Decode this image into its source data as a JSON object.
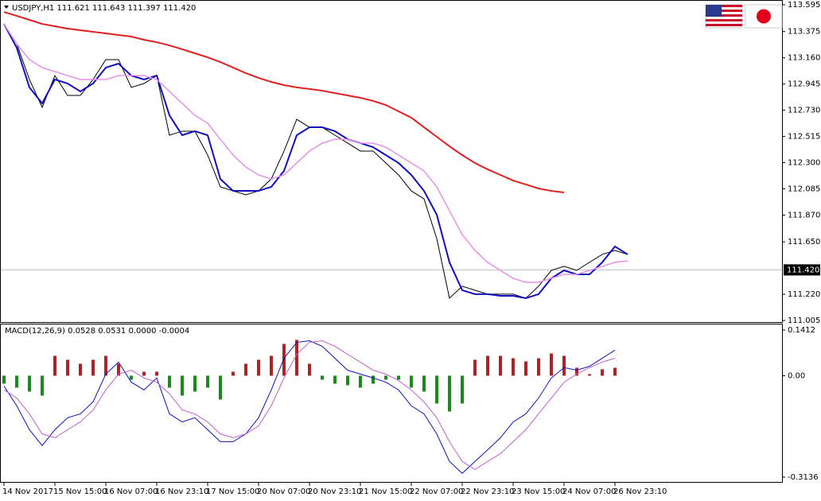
{
  "chart_data": [
    {
      "type": "line",
      "title": "USDJPY,H1  111.621 111.643 111.397 111.420",
      "last_price": {
        "value": 111.42,
        "label": "111.420"
      },
      "ylim": [
        111.005,
        113.595
      ],
      "yticks": [
        113.595,
        113.375,
        {
          "value": 113.16,
          "label": "113.160"
        },
        112.945,
        {
          "value": 112.73,
          "label": "112.730"
        },
        112.515,
        {
          "value": 112.3,
          "label": "112.300"
        },
        112.085,
        {
          "value": 111.87,
          "label": "111.870"
        },
        {
          "value": 111.65,
          "label": "111.650"
        },
        {
          "value": 111.22,
          "label": "111.220"
        },
        111.005
      ],
      "series": [
        {
          "color": "#000000",
          "width": 1,
          "values": [
            113.438,
            113.275,
            112.982,
            112.753,
            113.014,
            112.851,
            112.851,
            112.982,
            113.145,
            113.145,
            112.917,
            112.949,
            113.014,
            112.525,
            112.558,
            112.558,
            112.362,
            112.101,
            112.068,
            112.036,
            112.068,
            112.166,
            112.395,
            112.656,
            112.59,
            112.59,
            112.525,
            112.46,
            112.395,
            112.395,
            112.297,
            112.199,
            112.068,
            112.003,
            111.677,
            111.188,
            111.286,
            111.253,
            111.221,
            111.221,
            111.221,
            111.188,
            111.286,
            111.416,
            111.449,
            111.416,
            111.482,
            111.547,
            111.58,
            111.547
          ]
        },
        {
          "color": "#1010c0",
          "width": 2,
          "values": [
            113.438,
            113.243,
            112.917,
            112.786,
            112.982,
            112.949,
            112.884,
            112.949,
            113.08,
            113.112,
            113.014,
            112.982,
            113.014,
            112.688,
            112.525,
            112.558,
            112.525,
            112.166,
            112.068,
            112.068,
            112.068,
            112.101,
            112.232,
            112.525,
            112.59,
            112.59,
            112.558,
            112.492,
            112.46,
            112.427,
            112.362,
            112.297,
            112.199,
            112.068,
            111.873,
            111.482,
            111.253,
            111.221,
            111.221,
            111.207,
            111.207,
            111.188,
            111.221,
            111.351,
            111.416,
            111.383,
            111.383,
            111.482,
            111.612,
            111.547
          ]
        },
        {
          "color": "#e890e8",
          "width": 1.5,
          "values": [
            113.438,
            113.275,
            113.145,
            113.08,
            113.047,
            113.014,
            112.982,
            112.982,
            112.982,
            113.014,
            113.014,
            113.014,
            112.982,
            112.884,
            112.786,
            112.688,
            112.623,
            112.492,
            112.362,
            112.264,
            112.199,
            112.166,
            112.199,
            112.297,
            112.395,
            112.46,
            112.492,
            112.492,
            112.46,
            112.46,
            112.427,
            112.362,
            112.297,
            112.232,
            112.101,
            111.905,
            111.71,
            111.58,
            111.482,
            111.416,
            111.351,
            111.318,
            111.318,
            111.351,
            111.383,
            111.383,
            111.416,
            111.449,
            111.482,
            111.494
          ]
        },
        {
          "color": "#e02020",
          "width": 2,
          "values": [
            113.536,
            113.504,
            113.471,
            113.438,
            113.419,
            113.399,
            113.386,
            113.373,
            113.36,
            113.347,
            113.334,
            113.308,
            113.288,
            113.262,
            113.23,
            113.197,
            113.164,
            113.125,
            113.08,
            113.034,
            112.995,
            112.962,
            112.936,
            112.917,
            112.904,
            112.89,
            112.871,
            112.851,
            112.832,
            112.806,
            112.773,
            112.721,
            112.669,
            112.59,
            112.512,
            112.434,
            112.362,
            112.297,
            112.245,
            112.199,
            112.153,
            112.121,
            112.088,
            112.068,
            112.055,
            null,
            null,
            null,
            null,
            null
          ]
        }
      ]
    },
    {
      "type": "macd",
      "title": "MACD(12,26,9) 0.0528 0.0531 0.0000 -0.0004",
      "ylim": [
        -0.3136,
        0.1412
      ],
      "yticks": [
        0.1412,
        {
          "value": 0,
          "label": "0.00"
        },
        -0.3136
      ],
      "categories": [
        "14 Nov 2017",
        null,
        null,
        null,
        "15 Nov 15:00",
        null,
        null,
        null,
        "16 Nov 07:00",
        null,
        null,
        null,
        "16 Nov 23:10",
        null,
        null,
        null,
        "17 Nov 15:00",
        null,
        null,
        null,
        "20 Nov 07:00",
        null,
        null,
        null,
        "20 Nov 23:10",
        null,
        null,
        null,
        "21 Nov 15:00",
        null,
        null,
        null,
        "22 Nov 07:00",
        null,
        null,
        null,
        "22 Nov 23:10",
        null,
        null,
        null,
        "23 Nov 15:00",
        null,
        null,
        null,
        "24 Nov 07:00",
        null,
        null,
        null,
        "26 Nov 23:10",
        null
      ],
      "up_color": "#b22222",
      "down_color": "#1a8a1a",
      "histogram": [
        -0.0246,
        -0.0369,
        -0.0492,
        -0.0615,
        0.0615,
        0.0492,
        0.0369,
        0.0492,
        0.0615,
        0.0369,
        -0.0123,
        0.0123,
        0.0123,
        -0.0369,
        -0.0615,
        -0.0492,
        -0.0369,
        -0.0737,
        0.0123,
        0.0369,
        0.0492,
        0.0615,
        0.0983,
        0.1106,
        0.0369,
        -0.0123,
        -0.0246,
        -0.0295,
        -0.0369,
        -0.0246,
        -0.0123,
        -0.0123,
        -0.0369,
        -0.0492,
        -0.086,
        -0.1106,
        -0.086,
        0.0492,
        0.0615,
        0.0615,
        0.0541,
        0.0442,
        0.0541,
        0.0688,
        0.0615,
        0.0246,
        0.0049,
        0.0197,
        0.0246,
        null
      ],
      "series": [
        {
          "color": "#1010c0",
          "values": [
            -0.032,
            -0.093,
            -0.167,
            -0.216,
            -0.167,
            -0.13,
            -0.118,
            -0.081,
            0.005,
            0.042,
            -0.02,
            -0.044,
            -0.007,
            -0.118,
            -0.143,
            -0.13,
            -0.167,
            -0.204,
            -0.204,
            -0.18,
            -0.13,
            -0.044,
            0.054,
            0.103,
            0.108,
            0.091,
            0.054,
            0.017,
            0.005,
            -0.007,
            -0.02,
            -0.044,
            -0.093,
            -0.118,
            -0.18,
            -0.265,
            -0.302,
            -0.265,
            -0.229,
            -0.192,
            -0.143,
            -0.118,
            -0.069,
            -0.007,
            0.025,
            0.017,
            0.029,
            0.054,
            0.079,
            null
          ]
        },
        {
          "color": "#c060d0",
          "values": [
            -0.044,
            -0.069,
            -0.118,
            -0.18,
            -0.192,
            -0.167,
            -0.143,
            -0.106,
            -0.044,
            0.005,
            0.017,
            -0.007,
            -0.02,
            -0.056,
            -0.106,
            -0.118,
            -0.143,
            -0.18,
            -0.192,
            -0.18,
            -0.155,
            -0.093,
            -0.007,
            0.066,
            0.103,
            0.108,
            0.091,
            0.066,
            0.042,
            0.017,
            0.005,
            -0.015,
            -0.044,
            -0.081,
            -0.13,
            -0.204,
            -0.265,
            -0.29,
            -0.265,
            -0.241,
            -0.204,
            -0.167,
            -0.118,
            -0.069,
            -0.02,
            0.005,
            0.025,
            0.042,
            0.054,
            null
          ]
        }
      ]
    }
  ]
}
